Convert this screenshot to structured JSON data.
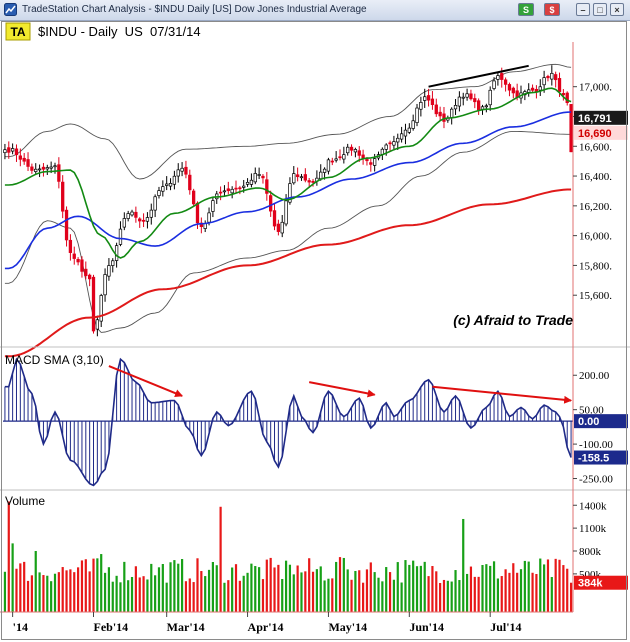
{
  "window": {
    "title": "TradeStation Chart Analysis - $INDU Daily [US] Dow Jones Industrial Average",
    "button_s": "S",
    "button_dollar": "$",
    "button_min": "–",
    "button_max": "□",
    "button_close": "×"
  },
  "header": {
    "badge": "TA",
    "symbol_line": "$INDU - Daily  US  07/31/14"
  },
  "watermark": "(c) Afraid to Trade",
  "colors": {
    "up_bar": "#000000",
    "down_bar": "#e0001b",
    "sma_fast": "#138a13",
    "sma_mid": "#1a2ee0",
    "sma_slow": "#e01a1a",
    "bollinger": "#555555",
    "macd_line": "#1f2a88",
    "volume_up": "#17a017",
    "volume_down": "#e81818",
    "annotation_arrow": "#e01010"
  },
  "chart_data": [
    {
      "type": "candlestick",
      "panel": "price",
      "ylim": [
        15400,
        17300
      ],
      "tick_labels": [
        "17,000.",
        "16,800",
        "16,600.",
        "16,400.",
        "16,200.",
        "16,000.",
        "15,800.",
        "15,600."
      ],
      "tick_values": [
        17000,
        16800,
        16600,
        16400,
        16200,
        16000,
        15800,
        15600
      ],
      "last_value_labels": [
        {
          "label": "16,791",
          "value": 16791,
          "bg": "#1a1a1a",
          "color": "#ffffff"
        },
        {
          "label": "16,690",
          "value": 16690,
          "bg": "#ffd9d9",
          "color": "#d00000"
        }
      ],
      "trendline": {
        "from": {
          "date": "2014-06-09",
          "value": 17000
        },
        "to": {
          "date": "2014-07-16",
          "value": 17140
        }
      },
      "anchors": {
        "close": [
          [
            "2013-12-31",
            16577
          ],
          [
            "2014-01-10",
            16437
          ],
          [
            "2014-01-17",
            16458
          ],
          [
            "2014-01-24",
            15879
          ],
          [
            "2014-01-31",
            15699
          ],
          [
            "2014-02-03",
            15373
          ],
          [
            "2014-02-07",
            15794
          ],
          [
            "2014-02-14",
            16154
          ],
          [
            "2014-02-21",
            16103
          ],
          [
            "2014-02-28",
            16321
          ],
          [
            "2014-03-07",
            16452
          ],
          [
            "2014-03-14",
            16065
          ],
          [
            "2014-03-21",
            16302
          ],
          [
            "2014-03-28",
            16323
          ],
          [
            "2014-04-04",
            16412
          ],
          [
            "2014-04-11",
            16027
          ],
          [
            "2014-04-17",
            16409
          ],
          [
            "2014-04-25",
            16361
          ],
          [
            "2014-05-02",
            16512
          ],
          [
            "2014-05-09",
            16583
          ],
          [
            "2014-05-16",
            16491
          ],
          [
            "2014-05-23",
            16606
          ],
          [
            "2014-05-30",
            16717
          ],
          [
            "2014-06-06",
            16924
          ],
          [
            "2014-06-13",
            16776
          ],
          [
            "2014-06-20",
            16947
          ],
          [
            "2014-06-27",
            16851
          ],
          [
            "2014-07-03",
            17068
          ],
          [
            "2014-07-11",
            16944
          ],
          [
            "2014-07-17",
            16976
          ],
          [
            "2014-07-24",
            17083
          ],
          [
            "2014-07-28",
            16983
          ],
          [
            "2014-07-30",
            16880
          ],
          [
            "2014-07-31",
            16563
          ]
        ],
        "sma_fast": [
          [
            "2013-12-31",
            16340
          ],
          [
            "2014-01-15",
            16430
          ],
          [
            "2014-01-24",
            16440
          ],
          [
            "2014-02-05",
            16000
          ],
          [
            "2014-02-12",
            15850
          ],
          [
            "2014-02-20",
            15960
          ],
          [
            "2014-03-05",
            16150
          ],
          [
            "2014-03-20",
            16260
          ],
          [
            "2014-04-04",
            16320
          ],
          [
            "2014-04-15",
            16240
          ],
          [
            "2014-05-01",
            16390
          ],
          [
            "2014-05-15",
            16520
          ],
          [
            "2014-06-02",
            16600
          ],
          [
            "2014-06-16",
            16790
          ],
          [
            "2014-07-01",
            16850
          ],
          [
            "2014-07-17",
            16960
          ],
          [
            "2014-07-24",
            16990
          ],
          [
            "2014-07-31",
            16900
          ]
        ],
        "sma_mid": [
          [
            "2013-12-31",
            15780
          ],
          [
            "2014-01-15",
            16050
          ],
          [
            "2014-01-28",
            16130
          ],
          [
            "2014-02-12",
            15980
          ],
          [
            "2014-02-26",
            15930
          ],
          [
            "2014-03-15",
            16080
          ],
          [
            "2014-04-01",
            16160
          ],
          [
            "2014-04-20",
            16260
          ],
          [
            "2014-05-10",
            16380
          ],
          [
            "2014-06-01",
            16490
          ],
          [
            "2014-06-20",
            16620
          ],
          [
            "2014-07-10",
            16730
          ],
          [
            "2014-07-31",
            16830
          ]
        ],
        "sma_slow": [
          [
            "2013-12-31",
            15190
          ],
          [
            "2014-02-01",
            15450
          ],
          [
            "2014-03-01",
            15640
          ],
          [
            "2014-04-01",
            15800
          ],
          [
            "2014-05-01",
            15940
          ],
          [
            "2014-06-01",
            16070
          ],
          [
            "2014-07-01",
            16210
          ],
          [
            "2014-07-31",
            16310
          ]
        ],
        "bollinger_upper": [
          [
            "2013-12-31",
            16530
          ],
          [
            "2014-01-15",
            16700
          ],
          [
            "2014-01-24",
            16750
          ],
          [
            "2014-02-06",
            16650
          ],
          [
            "2014-02-20",
            16380
          ],
          [
            "2014-03-10",
            16580
          ],
          [
            "2014-04-01",
            16600
          ],
          [
            "2014-04-15",
            16620
          ],
          [
            "2014-05-05",
            16680
          ],
          [
            "2014-05-25",
            16800
          ],
          [
            "2014-06-10",
            16980
          ],
          [
            "2014-06-25",
            17000
          ],
          [
            "2014-07-10",
            17100
          ],
          [
            "2014-07-25",
            17150
          ],
          [
            "2014-07-31",
            17130
          ]
        ],
        "bollinger_lower": [
          [
            "2013-12-31",
            15680
          ],
          [
            "2014-01-15",
            16100
          ],
          [
            "2014-01-24",
            16050
          ],
          [
            "2014-02-05",
            15350
          ],
          [
            "2014-02-12",
            15380
          ],
          [
            "2014-02-26",
            15480
          ],
          [
            "2014-03-12",
            15750
          ],
          [
            "2014-04-01",
            15850
          ],
          [
            "2014-04-15",
            15900
          ],
          [
            "2014-05-01",
            16050
          ],
          [
            "2014-05-20",
            16200
          ],
          [
            "2014-06-05",
            16400
          ],
          [
            "2014-06-20",
            16560
          ],
          [
            "2014-07-10",
            16700
          ],
          [
            "2014-07-31",
            16680
          ]
        ]
      }
    },
    {
      "type": "bar",
      "panel": "macd",
      "title": "MACD SMA (3,10)",
      "ylim": [
        -300,
        310
      ],
      "tick_labels": [
        "200.00",
        "50.00",
        "-100.00",
        "-250.00"
      ],
      "tick_values": [
        200,
        50,
        -100,
        -250
      ],
      "last_value_labels": [
        {
          "label": "0.00",
          "value": 0,
          "bg": "#1c2a8c",
          "color": "#ffffff"
        },
        {
          "label": "-158.5",
          "value": -158.5,
          "bg": "#1c2a8c",
          "color": "#ffffff"
        }
      ],
      "annotation_arrows": [
        {
          "from": {
            "date": "2014-02-07",
            "value": 240
          },
          "to": {
            "date": "2014-03-07",
            "value": 110
          }
        },
        {
          "from": {
            "date": "2014-04-24",
            "value": 170
          },
          "to": {
            "date": "2014-05-19",
            "value": 115
          }
        },
        {
          "from": {
            "date": "2014-06-10",
            "value": 150
          },
          "to": {
            "date": "2014-07-31",
            "value": 90
          }
        }
      ],
      "anchors": [
        [
          "2013-12-31",
          150
        ],
        [
          "2014-01-03",
          270
        ],
        [
          "2014-01-09",
          120
        ],
        [
          "2014-01-14",
          -100
        ],
        [
          "2014-01-17",
          40
        ],
        [
          "2014-01-24",
          -170
        ],
        [
          "2014-02-03",
          -280
        ],
        [
          "2014-02-06",
          -210
        ],
        [
          "2014-02-12",
          270
        ],
        [
          "2014-02-19",
          170
        ],
        [
          "2014-02-25",
          80
        ],
        [
          "2014-03-05",
          90
        ],
        [
          "2014-03-11",
          -40
        ],
        [
          "2014-03-14",
          -150
        ],
        [
          "2014-03-20",
          40
        ],
        [
          "2014-03-25",
          -20
        ],
        [
          "2014-04-02",
          130
        ],
        [
          "2014-04-08",
          -90
        ],
        [
          "2014-04-11",
          -200
        ],
        [
          "2014-04-17",
          110
        ],
        [
          "2014-04-22",
          20
        ],
        [
          "2014-04-25",
          -50
        ],
        [
          "2014-05-01",
          130
        ],
        [
          "2014-05-07",
          20
        ],
        [
          "2014-05-13",
          100
        ],
        [
          "2014-05-16",
          -30
        ],
        [
          "2014-05-22",
          80
        ],
        [
          "2014-05-27",
          20
        ],
        [
          "2014-06-02",
          90
        ],
        [
          "2014-06-09",
          180
        ],
        [
          "2014-06-13",
          40
        ],
        [
          "2014-06-18",
          110
        ],
        [
          "2014-06-24",
          -30
        ],
        [
          "2014-06-30",
          60
        ],
        [
          "2014-07-03",
          130
        ],
        [
          "2014-07-09",
          20
        ],
        [
          "2014-07-14",
          60
        ],
        [
          "2014-07-17",
          10
        ],
        [
          "2014-07-22",
          70
        ],
        [
          "2014-07-25",
          40
        ],
        [
          "2014-07-28",
          20
        ],
        [
          "2014-07-31",
          -158.5
        ]
      ]
    },
    {
      "type": "bar",
      "panel": "volume",
      "title": "Volume",
      "ylim": [
        0,
        1600
      ],
      "tick_labels": [
        "1400k",
        "1100k",
        "800k",
        "500k"
      ],
      "tick_values": [
        1400,
        1100,
        800,
        500
      ],
      "last_value_labels": [
        {
          "label": "384k",
          "value": 384,
          "bg": "#e81818",
          "color": "#ffffff"
        }
      ],
      "spikes": [
        [
          "2013-12-31",
          1450
        ],
        [
          "2014-01-02",
          900
        ],
        [
          "2014-01-10",
          800
        ],
        [
          "2014-02-03",
          700
        ],
        [
          "2014-02-05",
          760
        ],
        [
          "2014-03-21",
          1380
        ],
        [
          "2014-04-16",
          620
        ],
        [
          "2014-05-06",
          720
        ],
        [
          "2014-06-20",
          1220
        ],
        [
          "2014-07-10",
          640
        ]
      ]
    }
  ],
  "x_axis": {
    "tick_labels": [
      "'14",
      "Feb'14",
      "Mar'14",
      "Apr'14",
      "May'14",
      "Jun'14",
      "Jul'14"
    ],
    "tick_dates": [
      "2014-01-02",
      "2014-02-03",
      "2014-03-03",
      "2014-04-01",
      "2014-05-01",
      "2014-06-02",
      "2014-07-01"
    ]
  }
}
